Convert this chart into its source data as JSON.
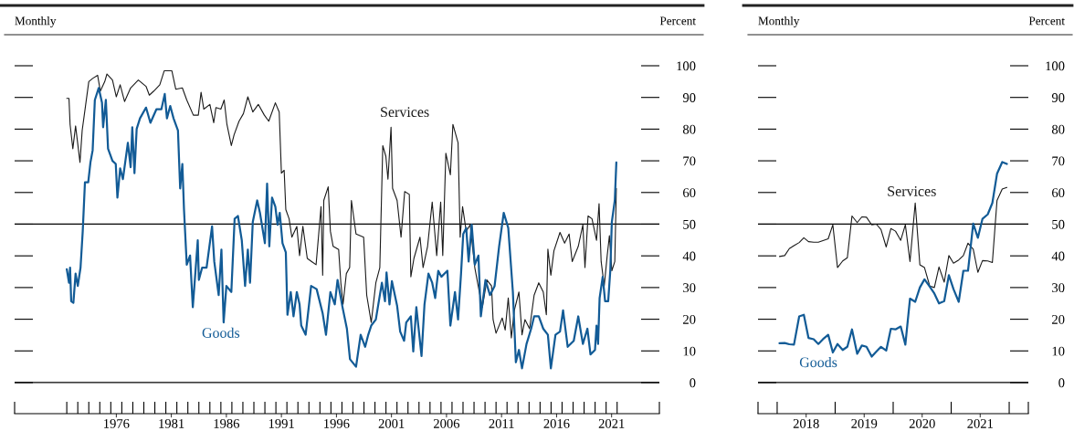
{
  "chart_data": [
    {
      "type": "line",
      "ylabel": "Percent",
      "annotations": [
        "Monthly"
      ],
      "xlim": [
        1967.26,
        2025.84
      ],
      "ylim": [
        -9.8,
        100
      ],
      "yticks": [
        0,
        10,
        20,
        30,
        40,
        50,
        60,
        70,
        80,
        90,
        100
      ],
      "xticks": [
        {
          "value": 1967.26,
          "label": null
        },
        {
          "value": 1972,
          "label": null
        },
        {
          "value": 1973,
          "label": null
        },
        {
          "value": 1974,
          "label": null
        },
        {
          "value": 1975,
          "label": null
        },
        {
          "value": 1976,
          "label": null
        },
        {
          "value": 1977,
          "label": null
        },
        {
          "value": 1978,
          "label": null
        },
        {
          "value": 1979,
          "label": null
        },
        {
          "value": 1980,
          "label": null
        },
        {
          "value": 1981,
          "label": null
        },
        {
          "value": 1982,
          "label": null
        },
        {
          "value": 1983,
          "label": null
        },
        {
          "value": 1984,
          "label": null
        },
        {
          "value": 1985,
          "label": null
        },
        {
          "value": 1986,
          "label": null
        },
        {
          "value": 1987,
          "label": null
        },
        {
          "value": 1988,
          "label": null
        },
        {
          "value": 1989,
          "label": null
        },
        {
          "value": 1990,
          "label": null
        },
        {
          "value": 1991,
          "label": null
        },
        {
          "value": 1992,
          "label": null
        },
        {
          "value": 1993,
          "label": null
        },
        {
          "value": 1994,
          "label": null
        },
        {
          "value": 1995,
          "label": null
        },
        {
          "value": 1996,
          "label": null
        },
        {
          "value": 1997,
          "label": null
        },
        {
          "value": 1998,
          "label": null
        },
        {
          "value": 1999,
          "label": null
        },
        {
          "value": 2000,
          "label": null
        },
        {
          "value": 2001,
          "label": null
        },
        {
          "value": 2002,
          "label": null
        },
        {
          "value": 2003,
          "label": null
        },
        {
          "value": 2004,
          "label": null
        },
        {
          "value": 2005,
          "label": null
        },
        {
          "value": 2006,
          "label": null
        },
        {
          "value": 2007,
          "label": null
        },
        {
          "value": 2008,
          "label": null
        },
        {
          "value": 2009,
          "label": null
        },
        {
          "value": 2010,
          "label": null
        },
        {
          "value": 2011,
          "label": null
        },
        {
          "value": 2012,
          "label": null
        },
        {
          "value": 2013,
          "label": null
        },
        {
          "value": 2014,
          "label": null
        },
        {
          "value": 2015,
          "label": null
        },
        {
          "value": 2016,
          "label": null
        },
        {
          "value": 2017,
          "label": null
        },
        {
          "value": 2018,
          "label": null
        },
        {
          "value": 2019,
          "label": null
        },
        {
          "value": 2020,
          "label": null
        },
        {
          "value": 2021,
          "label": null
        },
        {
          "value": 2022,
          "label": null
        },
        {
          "value": 2025.84,
          "label": null
        },
        {
          "value": 1976.5,
          "label": "1976"
        },
        {
          "value": 1981.5,
          "label": "1981"
        },
        {
          "value": 1986.5,
          "label": "1986"
        },
        {
          "value": 1991.5,
          "label": "1991"
        },
        {
          "value": 1996.5,
          "label": "1996"
        },
        {
          "value": 2001.5,
          "label": "2001"
        },
        {
          "value": 2006.5,
          "label": "2006"
        },
        {
          "value": 2011.5,
          "label": "2011"
        },
        {
          "value": 2016.5,
          "label": "2016"
        },
        {
          "value": 2021.5,
          "label": "2021"
        }
      ],
      "ref_lines": [
        {
          "axis": "y",
          "value": 0
        },
        {
          "axis": "y",
          "value": 50
        }
      ],
      "series": [
        {
          "name": "Services",
          "color": "#1a1a1a",
          "x": [
            1972.0,
            1972.2,
            1972.3,
            1972.55,
            1972.8,
            1973.2,
            1973.4,
            1973.7,
            1974.0,
            1974.35,
            1974.8,
            1975.05,
            1975.45,
            1975.65,
            1976.15,
            1976.5,
            1976.85,
            1977.25,
            1977.8,
            1978.5,
            1979.2,
            1979.5,
            1979.9,
            1980.45,
            1980.85,
            1981.55,
            1981.9,
            1982.5,
            1982.9,
            1983.5,
            1983.95,
            1984.2,
            1984.45,
            1985.0,
            1985.35,
            1985.55,
            1986.0,
            1986.3,
            1986.55,
            1986.95,
            1987.2,
            1987.65,
            1988.05,
            1988.45,
            1988.9,
            1989.4,
            1989.95,
            1990.35,
            1990.95,
            1991.3,
            1991.5,
            1991.75,
            1991.9,
            1992.2,
            1992.45,
            1992.9,
            1993.15,
            1993.45,
            1993.85,
            1994.25,
            1994.65,
            1995.1,
            1995.25,
            1995.35,
            1995.75,
            1995.95,
            1996.2,
            1996.7,
            1996.9,
            1997.1,
            1997.4,
            1997.7,
            1997.86,
            1998.28,
            1998.97,
            1999.25,
            1999.66,
            2000.08,
            2000.44,
            2000.71,
            2000.99,
            2001.18,
            2001.46,
            2001.6,
            2002.01,
            2002.37,
            2002.7,
            2003.12,
            2003.26,
            2003.54,
            2004.09,
            2004.37,
            2004.78,
            2005.2,
            2005.61,
            2005.97,
            2006.16,
            2006.44,
            2006.85,
            2007.08,
            2007.55,
            2007.74,
            2007.96,
            2008.29,
            2008.65,
            2009.07,
            2009.48,
            2009.76,
            2010.17,
            2010.59,
            2010.73,
            2011.0,
            2011.56,
            2011.83,
            2012.11,
            2012.39,
            2012.66,
            2013.08,
            2013.36,
            2013.63,
            2014.05,
            2014.46,
            2014.88,
            2015.29,
            2015.57,
            2015.71,
            2015.98,
            2016.26,
            2016.81,
            2017.23,
            2017.64,
            2017.92,
            2018.47,
            2018.89,
            2019.08,
            2019.36,
            2019.72,
            2020.13,
            2020.36,
            2020.55,
            2020.83,
            2021.1,
            2021.3,
            2021.52,
            2021.79,
            2021.93
          ],
          "values": [
            89.7,
            89.7,
            81.5,
            73.8,
            81,
            69.5,
            79.6,
            87.3,
            95,
            96,
            97,
            92,
            95,
            97.4,
            95.5,
            90.2,
            94,
            88.7,
            93,
            95.5,
            93.5,
            90.7,
            92,
            94,
            98.4,
            98.4,
            92.6,
            93,
            89.2,
            84.4,
            84.4,
            91.6,
            86.3,
            87.8,
            82,
            86.8,
            86.3,
            89.2,
            81.5,
            74.8,
            78.2,
            82.5,
            84.9,
            90.2,
            85.4,
            87.8,
            84.4,
            82.5,
            88.3,
            85.4,
            66.1,
            67,
            54.6,
            51.7,
            45.9,
            49.3,
            40.1,
            49.3,
            39.2,
            38.2,
            37.2,
            55.5,
            33.9,
            57.5,
            61.8,
            47.8,
            43,
            42,
            31.5,
            24.7,
            34.4,
            36.3,
            57.5,
            46.9,
            45.9,
            27.6,
            19,
            31.5,
            36.3,
            74.8,
            71.4,
            64.2,
            80.6,
            61.3,
            57.5,
            45.9,
            60.3,
            59.4,
            33.4,
            39.2,
            45.9,
            36.3,
            43,
            57,
            40.1,
            57,
            40.1,
            72.4,
            65.6,
            81.5,
            75.7,
            45.9,
            55.5,
            47.8,
            49.8,
            36.3,
            28.6,
            23.8,
            32.4,
            30.5,
            19.9,
            15.6,
            20.4,
            16.6,
            26.7,
            14.1,
            22.8,
            28.6,
            15.1,
            19.9,
            17,
            27.6,
            31.5,
            28.6,
            21.4,
            42.1,
            33.9,
            41.6,
            47.4,
            44,
            46.9,
            38.2,
            43,
            49.8,
            36.3,
            52.6,
            51.7,
            44.9,
            56.5,
            38.2,
            30.5,
            40.1,
            46.4,
            35.3,
            38.2,
            61.3
          ]
        },
        {
          "name": "Goods",
          "color": "#125b96",
          "x": [
            1972.0,
            1972.2,
            1972.3,
            1972.4,
            1972.6,
            1972.8,
            1973.0,
            1973.25,
            1973.45,
            1973.65,
            1973.95,
            1974.15,
            1974.35,
            1974.55,
            1974.9,
            1975.2,
            1975.3,
            1975.55,
            1975.75,
            1976.15,
            1976.45,
            1976.6,
            1976.85,
            1977.1,
            1977.55,
            1977.8,
            1977.95,
            1978.15,
            1978.35,
            1978.65,
            1979.2,
            1979.6,
            1980.15,
            1980.6,
            1980.9,
            1981.1,
            1981.4,
            1981.7,
            1982.1,
            1982.3,
            1982.5,
            1982.65,
            1982.9,
            1983.2,
            1983.45,
            1983.9,
            1984.0,
            1984.3,
            1984.7,
            1985.2,
            1985.4,
            1985.8,
            1986.05,
            1986.25,
            1986.5,
            1986.95,
            1987.25,
            1987.55,
            1987.9,
            1988.2,
            1988.45,
            1988.65,
            1988.9,
            1989.3,
            1989.55,
            1990.0,
            1990.2,
            1990.4,
            1990.65,
            1990.95,
            1991.15,
            1991.35,
            1991.6,
            1991.9,
            1992.05,
            1992.35,
            1992.6,
            1992.9,
            1993.15,
            1993.3,
            1993.7,
            1994.2,
            1994.7,
            1995.25,
            1995.55,
            1995.95,
            1996.35,
            1996.6,
            1997.05,
            1997.45,
            1997.73,
            1998.28,
            1998.7,
            1999.11,
            1999.39,
            1999.66,
            2000.08,
            2000.63,
            2000.91,
            2001.05,
            2001.32,
            2001.54,
            2002.01,
            2002.29,
            2002.65,
            2002.84,
            2003.26,
            2003.48,
            2003.76,
            2004.23,
            2004.5,
            2004.86,
            2005.2,
            2005.47,
            2005.75,
            2006.03,
            2006.58,
            2006.85,
            2007.27,
            2007.55,
            2007.82,
            2008.02,
            2008.29,
            2008.51,
            2008.79,
            2009.07,
            2009.4,
            2009.62,
            2010.04,
            2010.45,
            2010.87,
            2011.28,
            2011.7,
            2012.11,
            2012.53,
            2012.8,
            2013.08,
            2013.36,
            2013.77,
            2014.19,
            2014.46,
            2014.88,
            2015.29,
            2015.71,
            2015.98,
            2016.4,
            2016.81,
            2017.09,
            2017.51,
            2018.06,
            2018.47,
            2018.89,
            2019.3,
            2019.58,
            2019.99,
            2020.13,
            2020.27,
            2020.41,
            2020.69,
            2020.91,
            2021.19,
            2021.38,
            2021.52,
            2021.79,
            2021.93
          ],
          "values": [
            35.8,
            31.5,
            36.3,
            25.7,
            25.2,
            34.4,
            30.5,
            36.3,
            47.8,
            63.2,
            63.2,
            69.5,
            73.3,
            89.2,
            93,
            88.3,
            80.6,
            89.2,
            73.8,
            70,
            69,
            58.4,
            67.6,
            64.2,
            75.7,
            68,
            80.6,
            66.1,
            80.1,
            83.4,
            86.8,
            82,
            86.3,
            86.3,
            91.1,
            83.4,
            87.3,
            83.4,
            79.6,
            61.3,
            69,
            54.6,
            37.2,
            40.1,
            23.8,
            44.9,
            32.4,
            36.3,
            36.3,
            49.3,
            38.2,
            27.6,
            42,
            19,
            30.5,
            28.6,
            51.7,
            52.6,
            44.9,
            30.5,
            42,
            31.5,
            50.7,
            57.5,
            53.6,
            44,
            62.8,
            43,
            58.4,
            55.5,
            49.8,
            53.6,
            44,
            41.1,
            21.4,
            28.6,
            20.9,
            28.6,
            24.7,
            18,
            15.1,
            30.5,
            29.5,
            21.8,
            15.1,
            28.6,
            24.7,
            32.4,
            23.8,
            17,
            7.4,
            5,
            15.1,
            11.3,
            15.1,
            18,
            19.9,
            31.5,
            25.7,
            34.8,
            24.7,
            32,
            24.3,
            16.1,
            13.2,
            19,
            20.9,
            9.8,
            23.8,
            8.4,
            24.7,
            34.4,
            31.5,
            26.7,
            35.3,
            33.4,
            35.3,
            18,
            28.6,
            19.9,
            34.4,
            46.9,
            48.8,
            38.2,
            49.8,
            37.2,
            40.1,
            20.9,
            32.4,
            27.6,
            30.5,
            43,
            53.6,
            48.8,
            28.6,
            6.4,
            10.3,
            4.5,
            12.2,
            17,
            20.9,
            20.9,
            17,
            15.1,
            4.5,
            15.1,
            16.1,
            22.8,
            11.3,
            13.2,
            20.9,
            12.2,
            17,
            8.9,
            10.3,
            18,
            12.2,
            26.7,
            33.4,
            25.7,
            25.7,
            35.3,
            50.7,
            57.5,
            69.5
          ]
        }
      ]
    },
    {
      "type": "line",
      "ylabel": "Percent",
      "annotations": [
        "Monthly"
      ],
      "xlim": [
        2017.67,
        2022.33
      ],
      "ylim": [
        -9.8,
        100
      ],
      "yticks": [
        0,
        10,
        20,
        30,
        40,
        50,
        60,
        70,
        80,
        90,
        100
      ],
      "xticks": [
        {
          "value": 2017.67,
          "label": null
        },
        {
          "value": 2018,
          "label": null
        },
        {
          "value": 2019,
          "label": null
        },
        {
          "value": 2020,
          "label": null
        },
        {
          "value": 2021,
          "label": null
        },
        {
          "value": 2022,
          "label": null
        },
        {
          "value": 2022.33,
          "label": null
        },
        {
          "value": 2018.5,
          "label": "2018"
        },
        {
          "value": 2019.5,
          "label": "2019"
        },
        {
          "value": 2020.5,
          "label": "2020"
        },
        {
          "value": 2021.5,
          "label": "2021"
        }
      ],
      "ref_lines": [
        {
          "axis": "y",
          "value": 0
        },
        {
          "axis": "y",
          "value": 50
        }
      ],
      "x": [
        2018.04,
        2018.13,
        2018.21,
        2018.29,
        2018.38,
        2018.46,
        2018.54,
        2018.63,
        2018.71,
        2018.79,
        2018.88,
        2018.96,
        2019.04,
        2019.13,
        2019.21,
        2019.29,
        2019.38,
        2019.46,
        2019.54,
        2019.63,
        2019.71,
        2019.79,
        2019.88,
        2019.96,
        2020.04,
        2020.13,
        2020.21,
        2020.29,
        2020.38,
        2020.46,
        2020.54,
        2020.63,
        2020.71,
        2020.79,
        2020.88,
        2020.96,
        2021.04,
        2021.13,
        2021.21,
        2021.29,
        2021.38,
        2021.46,
        2021.54,
        2021.63,
        2021.71,
        2021.79,
        2021.88,
        2021.96
      ],
      "series": [
        {
          "name": "Services",
          "color": "#1a1a1a",
          "values": [
            39.8,
            40.1,
            42.3,
            43.2,
            44.2,
            45.7,
            44.5,
            44.3,
            44.3,
            44.8,
            45.4,
            49.8,
            36.3,
            38.4,
            39.4,
            52.6,
            50.5,
            52.3,
            52.2,
            49.8,
            50,
            48.3,
            42.8,
            48.6,
            47.8,
            44.9,
            49.8,
            38.2,
            56.7,
            37.2,
            36.3,
            30.5,
            30,
            36.5,
            31.7,
            40.1,
            37.7,
            38.7,
            40.1,
            44,
            42.1,
            34.8,
            38.5,
            38.4,
            37.9,
            57.5,
            61.1,
            61.6
          ]
        },
        {
          "name": "Goods",
          "color": "#125b96",
          "values": [
            12.4,
            12.5,
            12.1,
            12,
            20.9,
            21.4,
            14.1,
            13.7,
            12.2,
            13.7,
            15.1,
            9.5,
            12.2,
            10.3,
            11.3,
            16.8,
            9.1,
            11.7,
            11.3,
            8.2,
            9.8,
            11.3,
            10.1,
            17,
            16.8,
            17.7,
            12,
            26.5,
            25.5,
            30,
            32.6,
            30.3,
            28.1,
            25,
            25.7,
            33.9,
            29.5,
            25.5,
            35.3,
            35.3,
            50.2,
            45.7,
            51.7,
            53.1,
            56.7,
            65.9,
            69.6,
            69
          ]
        }
      ]
    }
  ]
}
